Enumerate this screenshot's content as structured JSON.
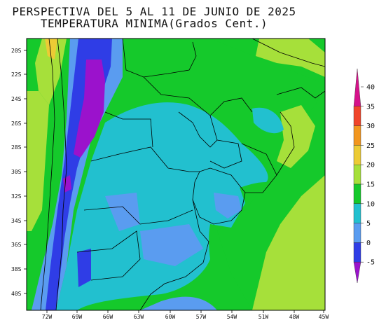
{
  "title": "PERSPECTIVA DEL 5 AL 11 DE JUNIO DE 2025",
  "subtitle": "TEMPERATURA MINIMA(Grados Cent.)",
  "lat_labels": [
    "20S",
    "22S",
    "24S",
    "26S",
    "28S",
    "30S",
    "32S",
    "34S",
    "36S",
    "38S",
    "40S"
  ],
  "lon_labels": [
    "72W",
    "69W",
    "66W",
    "63W",
    "60W",
    "57W",
    "54W",
    "51W",
    "48W",
    "45W"
  ],
  "colorbar": {
    "ticks": [
      "40",
      "35",
      "30",
      "25",
      "20",
      "15",
      "10",
      "5",
      "0",
      "-5"
    ],
    "bands": [
      {
        "range": "35 to 40",
        "color": "#d6128a"
      },
      {
        "range": "30 to 35",
        "color": "#f0452a"
      },
      {
        "range": "25 to 30",
        "color": "#f2961e"
      },
      {
        "range": "20 to 25",
        "color": "#eccb35"
      },
      {
        "range": "15 to 20",
        "color": "#a6e03a"
      },
      {
        "range": "10 to 15",
        "color": "#15c92b"
      },
      {
        "range": "5 to 10",
        "color": "#22c0cf"
      },
      {
        "range": "0 to 5",
        "color": "#5a9cf0"
      },
      {
        "range": "-5 to 0",
        "color": "#2f3de6"
      },
      {
        "range": "below -5",
        "color": "#9b12cc"
      }
    ]
  }
}
